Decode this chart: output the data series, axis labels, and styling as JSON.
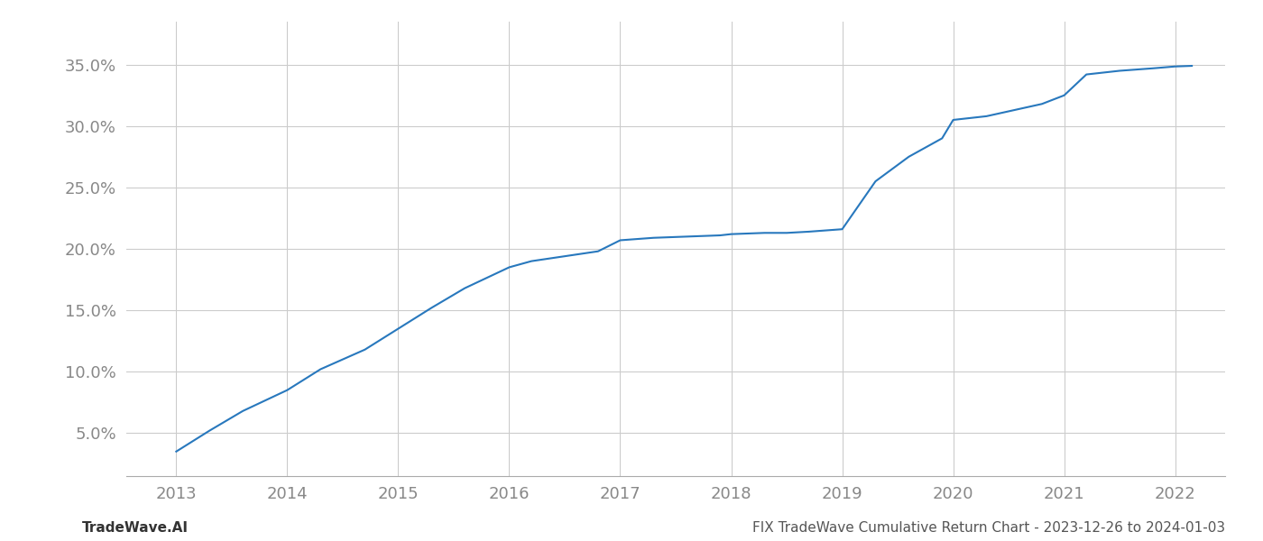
{
  "x_years": [
    2013.0,
    2013.3,
    2013.6,
    2014.0,
    2014.3,
    2014.7,
    2015.0,
    2015.3,
    2015.6,
    2016.0,
    2016.2,
    2016.5,
    2016.8,
    2017.0,
    2017.3,
    2017.6,
    2017.9,
    2018.0,
    2018.3,
    2018.5,
    2018.7,
    2019.0,
    2019.3,
    2019.6,
    2019.9,
    2020.0,
    2020.3,
    2020.5,
    2020.8,
    2021.0,
    2021.2,
    2021.5,
    2021.8,
    2022.0,
    2022.15
  ],
  "y_values": [
    3.5,
    5.2,
    6.8,
    8.5,
    10.2,
    11.8,
    13.5,
    15.2,
    16.8,
    18.5,
    19.0,
    19.4,
    19.8,
    20.7,
    20.9,
    21.0,
    21.1,
    21.2,
    21.3,
    21.3,
    21.4,
    21.6,
    25.5,
    27.5,
    29.0,
    30.5,
    30.8,
    31.2,
    31.8,
    32.5,
    34.2,
    34.5,
    34.7,
    34.85,
    34.9
  ],
  "line_color": "#2878bd",
  "line_width": 1.5,
  "background_color": "#ffffff",
  "grid_color": "#cccccc",
  "x_tick_labels": [
    "2013",
    "2014",
    "2015",
    "2016",
    "2017",
    "2018",
    "2019",
    "2020",
    "2021",
    "2022"
  ],
  "x_tick_positions": [
    2013,
    2014,
    2015,
    2016,
    2017,
    2018,
    2019,
    2020,
    2021,
    2022
  ],
  "y_ticks": [
    5.0,
    10.0,
    15.0,
    20.0,
    25.0,
    30.0,
    35.0
  ],
  "y_tick_labels": [
    "5.0%",
    "10.0%",
    "15.0%",
    "20.0%",
    "25.0%",
    "30.0%",
    "35.0%"
  ],
  "xlim": [
    2012.55,
    2022.45
  ],
  "ylim": [
    1.5,
    38.5
  ],
  "footer_left": "TradeWave.AI",
  "footer_right": "FIX TradeWave Cumulative Return Chart - 2023-12-26 to 2024-01-03",
  "footer_color": "#555555",
  "footer_fontsize": 11,
  "tick_label_color": "#888888",
  "tick_fontsize": 13
}
